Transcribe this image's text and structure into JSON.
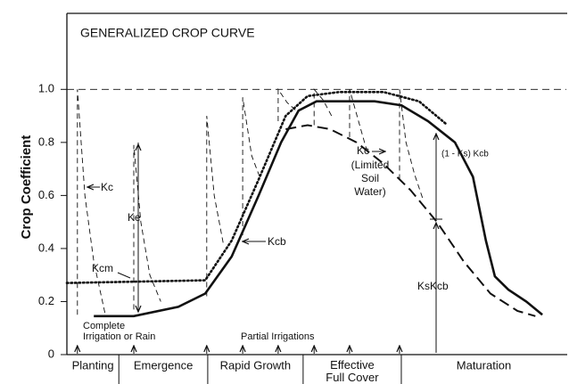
{
  "chart_data": {
    "type": "line",
    "title": "GENERALIZED CROP CURVE",
    "y_label": "Crop Coefficient",
    "xlim": [
      0,
      100
    ],
    "ylim": [
      0,
      1.3
    ],
    "yticks": [
      0,
      0.2,
      0.4,
      0.6,
      0.8,
      {
        "value": 1,
        "label": "1.0"
      }
    ],
    "hline": 1,
    "stages": [
      "Planting",
      "Emergence",
      "Rapid Growth",
      "Effective Full Cover",
      "Maturation"
    ],
    "stage_boundaries": [
      10.4,
      28.2,
      47.3,
      66.96
    ],
    "irrigations_x": [
      2.1,
      13.4,
      28,
      35.2,
      42.3,
      49.5,
      56.6,
      66.6
    ],
    "annotations": {
      "ke": "Ke",
      "kc_wet": "Kc",
      "kcm": "Kcm",
      "kcb": "Kcb",
      "kc_limited": "Kc",
      "limited": [
        "(Limited",
        "Soil",
        "Water)"
      ],
      "one_minus_ks": "(1 - Ks) Kcb",
      "kskcb": "KsKcb",
      "complete": [
        "Complete",
        "Irrigation or Rain"
      ],
      "partial": "Partial Irrigations"
    },
    "series": [
      {
        "name": "Kcb",
        "style": "solid",
        "color": "#111",
        "x": [
          5.4,
          13.4,
          22.3,
          27.7,
          33,
          38.4,
          42.9,
          46.4,
          50,
          61.6,
          67,
          72.3,
          77.7,
          81.3,
          83.9,
          85.7,
          88.4,
          92,
          95.2
        ],
        "values": [
          0.145,
          0.145,
          0.18,
          0.23,
          0.37,
          0.6,
          0.8,
          0.92,
          0.955,
          0.955,
          0.94,
          0.88,
          0.8,
          0.67,
          0.43,
          0.295,
          0.245,
          0.2,
          0.15
        ]
      },
      {
        "name": "Kcm",
        "style": "dotted",
        "color": "#111",
        "x": [
          0,
          27.7,
          33,
          38.4,
          43.8,
          48.2,
          54.5,
          63.4,
          70.5,
          75.9
        ],
        "values": [
          0.27,
          0.28,
          0.43,
          0.66,
          0.9,
          0.975,
          0.99,
          0.99,
          0.955,
          0.87
        ]
      },
      {
        "name": "Kc",
        "style": "dashed",
        "color": "#111",
        "x": [
          43.8,
          48.2,
          52.7,
          58,
          63.4,
          68.8,
          74.1,
          79.5,
          84.8,
          90.2,
          93.8
        ],
        "values": [
          0.85,
          0.865,
          0.85,
          0.8,
          0.72,
          0.62,
          0.5,
          0.35,
          0.23,
          0.165,
          0.145
        ]
      },
      {
        "name": "Kc",
        "style": "thin",
        "color": "#111",
        "x": [
          2.1,
          2.1,
          3.6,
          5.4,
          7.7,
          null,
          13.4,
          13.4,
          14.8,
          16.6,
          18.8,
          null,
          28,
          28,
          29.5,
          31.3,
          null,
          35.2,
          35.2,
          37,
          38.8,
          null,
          42.3,
          42.3,
          44.1,
          45.9,
          null,
          49.5,
          49.5,
          51.3,
          53,
          null,
          56.6,
          56.6,
          58.4,
          60.2,
          null,
          66.6,
          66.6,
          67.9,
          69.6,
          71.4
        ],
        "values": [
          0.15,
          1,
          0.6,
          0.35,
          0.15,
          null,
          0.17,
          0.79,
          0.5,
          0.3,
          0.2,
          null,
          0.22,
          0.9,
          0.6,
          0.42,
          null,
          0.45,
          0.97,
          0.75,
          0.66,
          null,
          0.88,
          1,
          0.95,
          0.92,
          null,
          0.865,
          1,
          0.96,
          0.9,
          null,
          0.82,
          1,
          0.88,
          0.76,
          null,
          0.66,
          1,
          0.8,
          0.68,
          0.58
        ]
      }
    ]
  }
}
